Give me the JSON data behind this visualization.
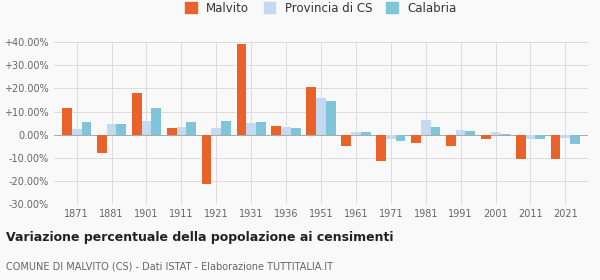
{
  "years": [
    1871,
    1881,
    1901,
    1911,
    1921,
    1931,
    1936,
    1951,
    1961,
    1971,
    1981,
    1991,
    2001,
    2011,
    2021
  ],
  "malvito": [
    11.5,
    -8.0,
    18.0,
    3.0,
    -21.0,
    39.0,
    4.0,
    20.5,
    -5.0,
    -11.5,
    -3.5,
    -5.0,
    -2.0,
    -10.5,
    -10.5
  ],
  "provincia_cs": [
    2.5,
    4.5,
    6.0,
    3.5,
    3.0,
    5.0,
    3.5,
    16.0,
    1.0,
    -2.0,
    6.5,
    2.0,
    1.0,
    -2.0,
    -1.5
  ],
  "calabria": [
    5.5,
    4.5,
    11.5,
    5.5,
    6.0,
    5.5,
    3.0,
    14.5,
    1.0,
    -2.5,
    3.5,
    1.5,
    0.5,
    -2.0,
    -4.0
  ],
  "color_malvito": "#e8622a",
  "color_provincia": "#c5d9f0",
  "color_calabria": "#7fc4d8",
  "ylim": [
    -30,
    40
  ],
  "yticks": [
    -30,
    -20,
    -10,
    0,
    10,
    20,
    30,
    40
  ],
  "ytick_labels": [
    "-30.00%",
    "-20.00%",
    "-10.00%",
    "0.00%",
    "+10.00%",
    "+20.00%",
    "+30.00%",
    "+40.00%"
  ],
  "title": "Variazione percentuale della popolazione ai censimenti",
  "subtitle": "COMUNE DI MALVITO (CS) - Dati ISTAT - Elaborazione TUTTITALIA.IT",
  "legend_labels": [
    "Malvito",
    "Provincia di CS",
    "Calabria"
  ],
  "bar_width": 0.28,
  "background_color": "#f9f9f9",
  "grid_color": "#dddddd"
}
